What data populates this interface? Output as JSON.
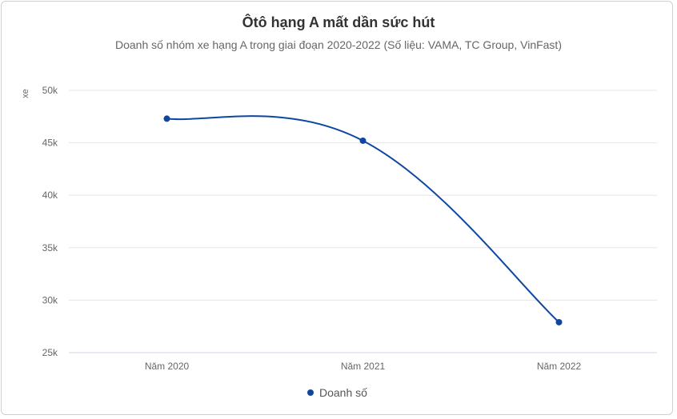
{
  "chart_data": {
    "type": "line",
    "title": "Ôtô hạng A mất dần sức hút",
    "subtitle": "Doanh số nhóm xe hạng A trong giai đoạn 2020-2022 (Số liệu: VAMA, TC Group, VinFast)",
    "xlabel": "",
    "ylabel": "xe",
    "categories": [
      "Năm 2020",
      "Năm 2021",
      "Năm 2022"
    ],
    "series": [
      {
        "name": "Doanh số",
        "values": [
          47300,
          45200,
          27900
        ],
        "color": "#0d47a1"
      }
    ],
    "ylim": [
      25000,
      50000
    ],
    "yticks": [
      25000,
      30000,
      35000,
      40000,
      45000,
      50000
    ],
    "ytick_labels": [
      "25k",
      "30k",
      "35k",
      "40k",
      "45k",
      "50k"
    ],
    "grid": true,
    "legend": "bottom-center",
    "smooth": true
  }
}
